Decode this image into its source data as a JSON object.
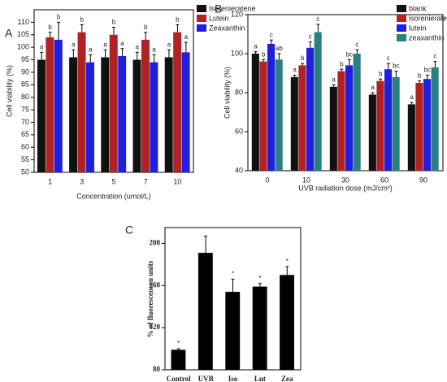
{
  "chart_data": [
    {
      "type": "bar",
      "panel": "A",
      "ylabel": "Cell viability (%)",
      "xlabel": "Concentration (umol/L)",
      "categories": [
        "1",
        "3",
        "5",
        "7",
        "10"
      ],
      "series": [
        {
          "name": "Isorenieratene",
          "color": "#111111",
          "values": [
            95,
            96,
            96,
            95,
            96
          ],
          "errors": [
            3,
            3,
            3,
            3,
            3
          ],
          "labels": [
            "a",
            "a",
            "a",
            "a",
            "a"
          ]
        },
        {
          "name": "Lutein",
          "color": "#b22222",
          "values": [
            104,
            106,
            105,
            103,
            106
          ],
          "errors": [
            2,
            3,
            3,
            3,
            3
          ],
          "labels": [
            "b",
            "b",
            "b",
            "b",
            "b"
          ]
        },
        {
          "name": "Zeaxanthin",
          "color": "#1f1fe0",
          "values": [
            103,
            94,
            96.5,
            94,
            98
          ],
          "errors": [
            7,
            3,
            3,
            3,
            4
          ],
          "labels": [
            "b",
            "a",
            "a",
            "a",
            "a"
          ]
        }
      ],
      "ylim": [
        50,
        115
      ],
      "yticks": [
        50,
        55,
        60,
        65,
        70,
        75,
        80,
        85,
        90,
        95,
        100,
        105,
        110
      ]
    },
    {
      "type": "bar",
      "panel": "B",
      "ylabel": "Cell viability (%)",
      "xlabel": "UVB radiation dose (mJ/cm²)",
      "categories": [
        "0",
        "10",
        "30",
        "60",
        "90"
      ],
      "series": [
        {
          "name": "blank",
          "color": "#111111",
          "values": [
            100,
            88,
            83,
            79,
            74
          ],
          "errors": [
            1,
            1,
            1,
            1,
            1
          ],
          "labels": [
            "a",
            "a",
            "a",
            "a",
            "a"
          ]
        },
        {
          "name": "isorenieratene",
          "color": "#b22222",
          "values": [
            96,
            94,
            91,
            86,
            85
          ],
          "errors": [
            1,
            1,
            1,
            1,
            1
          ],
          "labels": [
            "b",
            "b",
            "b",
            "b",
            "b"
          ]
        },
        {
          "name": "lutein",
          "color": "#1f1fe0",
          "values": [
            105,
            103,
            94,
            92,
            87
          ],
          "errors": [
            2,
            3,
            3,
            3,
            2
          ],
          "labels": [
            "c",
            "c",
            "bc",
            "c",
            "bc"
          ]
        },
        {
          "name": "zeaxanthin",
          "color": "#2a8080",
          "values": [
            97,
            111,
            100,
            88,
            93
          ],
          "errors": [
            3,
            4,
            2,
            3,
            3
          ],
          "labels": [
            "ab",
            "c",
            "c",
            "bc",
            "c"
          ]
        }
      ],
      "ylim": [
        40,
        120
      ],
      "yticks": [
        40,
        60,
        80,
        100,
        120
      ]
    },
    {
      "type": "bar",
      "panel": "C",
      "ylabel": "% of fluorescencen units",
      "categories": [
        "Control",
        "UVB",
        "Iso",
        "Lut",
        "Zea"
      ],
      "series": [
        {
          "color": "#000000",
          "values": [
            99,
            191,
            154,
            159,
            170
          ],
          "errors": [
            1,
            16,
            12,
            3,
            8
          ],
          "labels": [
            "*",
            null,
            "*",
            "*",
            "*"
          ]
        }
      ],
      "ylim": [
        80,
        215
      ],
      "yticks": [
        80,
        120,
        160,
        200
      ]
    }
  ]
}
